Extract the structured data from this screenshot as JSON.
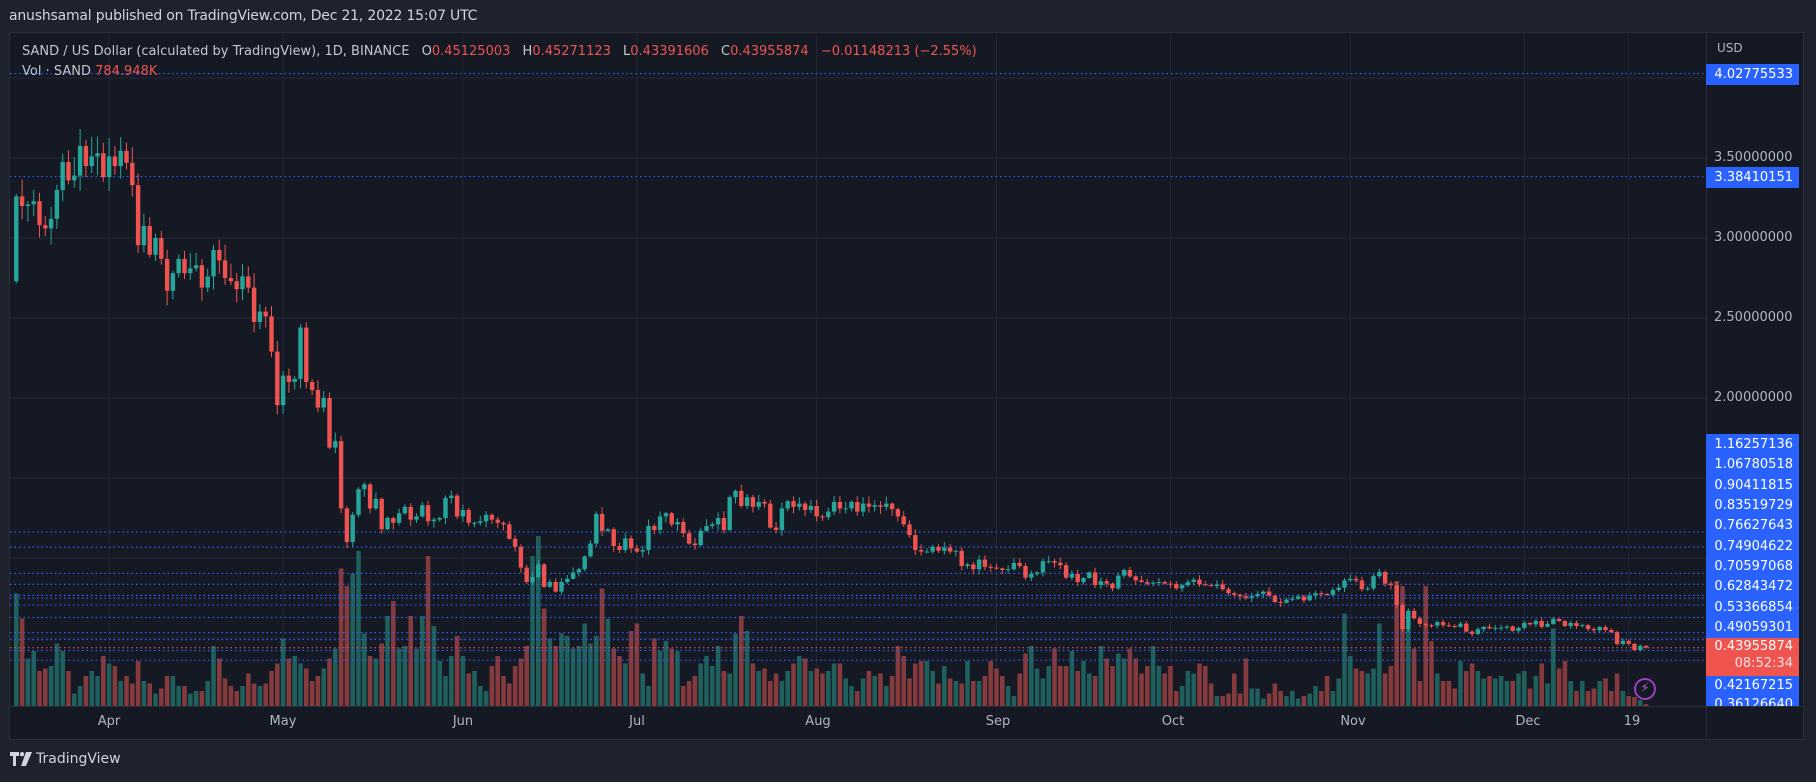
{
  "published": "anushsamal published on TradingView.com, Dec 21, 2022 15:07 UTC",
  "legend": {
    "symbol": "SAND / US Dollar (calculated by TradingView), 1D, BINANCE",
    "o_label": "O",
    "o": "0.45125003",
    "h_label": "H",
    "h": "0.45271123",
    "l_label": "L",
    "l": "0.43391606",
    "c_label": "C",
    "c": "0.43955874",
    "change": "−0.01148213 (−2.55%)",
    "vol_label": "Vol · SAND",
    "vol": "784.948K"
  },
  "price_axis": {
    "currency": "USD",
    "tag_high": "4.02775533",
    "tag_mid": "3.38410151",
    "grid_labels": [
      "3.50000000",
      "3.00000000",
      "2.50000000",
      "2.00000000"
    ],
    "stacked_labels": [
      "1.16257136",
      "1.06780518",
      "0.90411815",
      "0.83519729",
      "0.76627643",
      "0.74904622",
      "0.70597068",
      "0.62843472",
      "0.53366854",
      "0.49059301"
    ],
    "current_price": "0.43955874",
    "countdown": "08:52:34",
    "below_labels": [
      "0.42167215",
      "0.36126640"
    ]
  },
  "time_axis": [
    "Apr",
    "May",
    "Jun",
    "Jul",
    "Aug",
    "Sep",
    "Oct",
    "Nov",
    "Dec",
    "19"
  ],
  "brand": "TradingView",
  "colors": {
    "up": "#26a69a",
    "down": "#ef5350",
    "vol_up": "#1f5f5c",
    "vol_down": "#853a3e",
    "line": "#2962ff",
    "current": "#f0544f"
  },
  "chart_data": {
    "type": "candlestick",
    "title": "SAND / US Dollar, 1D, BINANCE",
    "ylabel": "USD",
    "ylim": [
      0,
      4.4
    ],
    "y_ticks": [
      0.5,
      1.0,
      1.5,
      2.0,
      2.5,
      3.0,
      3.5,
      4.0
    ],
    "start_date": "2022-03-16",
    "end_date": "2022-12-21",
    "month_ticks": [
      {
        "label": "Apr",
        "index": 16
      },
      {
        "label": "May",
        "index": 46
      },
      {
        "label": "Jun",
        "index": 77
      },
      {
        "label": "Jul",
        "index": 107
      },
      {
        "label": "Aug",
        "index": 138
      },
      {
        "label": "Sep",
        "index": 169
      },
      {
        "label": "Oct",
        "index": 199
      },
      {
        "label": "Nov",
        "index": 230
      },
      {
        "label": "Dec",
        "index": 260
      },
      {
        "label": "19",
        "index": 278
      }
    ],
    "first_open": 2.73,
    "last_open": 0.45125003,
    "close": [
      3.26,
      3.2,
      3.21,
      3.23,
      3.08,
      3.06,
      3.12,
      3.3,
      3.475,
      3.36,
      3.39,
      3.575,
      3.45,
      3.51,
      3.53,
      3.38,
      3.51,
      3.45,
      3.545,
      3.47,
      3.33,
      2.955,
      3.075,
      2.895,
      3.0,
      2.87,
      2.67,
      2.78,
      2.87,
      2.78,
      2.81,
      2.83,
      2.69,
      2.76,
      2.925,
      2.86,
      2.75,
      2.73,
      2.68,
      2.76,
      2.69,
      2.475,
      2.54,
      2.51,
      2.29,
      1.955,
      2.14,
      2.1,
      2.12,
      2.44,
      2.1,
      2.05,
      1.94,
      2.0,
      1.69,
      1.73,
      1.31,
      1.1,
      1.27,
      1.43,
      1.46,
      1.31,
      1.37,
      1.18,
      1.25,
      1.22,
      1.28,
      1.32,
      1.24,
      1.26,
      1.33,
      1.23,
      1.24,
      1.25,
      1.375,
      1.39,
      1.26,
      1.3,
      1.22,
      1.22,
      1.23,
      1.27,
      1.24,
      1.22,
      1.21,
      1.12,
      1.07,
      0.94,
      0.85,
      0.88,
      0.96,
      0.82,
      0.85,
      0.79,
      0.85,
      0.87,
      0.91,
      0.93,
      1.01,
      1.09,
      1.275,
      1.17,
      1.18,
      1.075,
      1.05,
      1.123,
      1.06,
      1.04,
      1.05,
      1.2,
      1.175,
      1.26,
      1.28,
      1.21,
      1.225,
      1.155,
      1.09,
      1.08,
      1.17,
      1.2,
      1.21,
      1.25,
      1.175,
      1.38,
      1.42,
      1.325,
      1.38,
      1.32,
      1.35,
      1.34,
      1.19,
      1.175,
      1.31,
      1.355,
      1.32,
      1.34,
      1.3,
      1.325,
      1.26,
      1.255,
      1.29,
      1.35,
      1.31,
      1.31,
      1.35,
      1.29,
      1.34,
      1.32,
      1.33,
      1.32,
      1.34,
      1.305,
      1.26,
      1.21,
      1.143,
      1.05,
      1.04,
      1.04,
      1.07,
      1.045,
      1.065,
      1.04,
      1.045,
      0.95,
      0.96,
      0.93,
      0.99,
      0.945,
      0.94,
      0.935,
      0.925,
      0.93,
      0.97,
      0.95,
      0.877,
      0.9,
      0.91,
      0.98,
      0.98,
      0.97,
      0.955,
      0.877,
      0.9,
      0.85,
      0.875,
      0.91,
      0.83,
      0.855,
      0.84,
      0.81,
      0.89,
      0.925,
      0.885,
      0.86,
      0.85,
      0.84,
      0.845,
      0.85,
      0.84,
      0.837,
      0.81,
      0.83,
      0.85,
      0.865,
      0.835,
      0.83,
      0.825,
      0.835,
      0.805,
      0.78,
      0.77,
      0.76,
      0.75,
      0.76,
      0.775,
      0.79,
      0.765,
      0.725,
      0.72,
      0.74,
      0.745,
      0.76,
      0.735,
      0.765,
      0.78,
      0.775,
      0.77,
      0.8,
      0.815,
      0.86,
      0.87,
      0.86,
      0.805,
      0.81,
      0.887,
      0.912,
      0.84,
      0.83,
      0.706,
      0.556,
      0.67,
      0.623,
      0.588,
      0.58,
      0.578,
      0.6,
      0.58,
      0.575,
      0.57,
      0.59,
      0.54,
      0.525,
      0.555,
      0.57,
      0.56,
      0.563,
      0.565,
      0.572,
      0.545,
      0.563,
      0.594,
      0.585,
      0.606,
      0.57,
      0.588,
      0.62,
      0.606,
      0.575,
      0.594,
      0.575,
      0.58,
      0.556,
      0.548,
      0.568,
      0.55,
      0.537,
      0.463,
      0.482,
      0.463,
      0.425,
      0.451,
      0.4396
    ],
    "volume_m": [
      45,
      35,
      19,
      22,
      14,
      15,
      16,
      25,
      22,
      14,
      5,
      8,
      12,
      14,
      12,
      20,
      17,
      16,
      10,
      12,
      9,
      18,
      10,
      9,
      5,
      7,
      12,
      12,
      8,
      8,
      5,
      6,
      6,
      10,
      24,
      19,
      11,
      8,
      6,
      8,
      13,
      9,
      8,
      9,
      14,
      17,
      27,
      19,
      20,
      17,
      15,
      10,
      12,
      15,
      19,
      23,
      55,
      48,
      53,
      62,
      29,
      20,
      19,
      25,
      36,
      42,
      23,
      24,
      36,
      23,
      36,
      60,
      32,
      18,
      12,
      20,
      28,
      20,
      13,
      14,
      8,
      6,
      16,
      20,
      12,
      9,
      16,
      19,
      24,
      60,
      68,
      39,
      27,
      24,
      29,
      28,
      23,
      24,
      33,
      25,
      28,
      47,
      35,
      23,
      20,
      17,
      30,
      33,
      13,
      8,
      27,
      22,
      26,
      23,
      22,
      8,
      10,
      12,
      17,
      20,
      16,
      24,
      14,
      13,
      29,
      36,
      30,
      17,
      14,
      15,
      10,
      13,
      10,
      14,
      17,
      20,
      19,
      14,
      15,
      13,
      14,
      17,
      17,
      11,
      8,
      6,
      11,
      14,
      12,
      13,
      8,
      12,
      24,
      20,
      11,
      17,
      18,
      18,
      14,
      9,
      16,
      11,
      10,
      9,
      18,
      10,
      10,
      12,
      18,
      15,
      12,
      8,
      4,
      13,
      21,
      24,
      15,
      11,
      16,
      23,
      16,
      16,
      22,
      14,
      18,
      13,
      12,
      24,
      19,
      16,
      21,
      19,
      23,
      19,
      13,
      16,
      24,
      16,
      13,
      16,
      6,
      8,
      14,
      13,
      17,
      16,
      9,
      4,
      4,
      5,
      13,
      5,
      19,
      7,
      7,
      3,
      5,
      9,
      6,
      4,
      6,
      3,
      4,
      5,
      8,
      6,
      12,
      6,
      11,
      37,
      20,
      15,
      14,
      13,
      15,
      33,
      13,
      16,
      50,
      48,
      31,
      23,
      10,
      48,
      26,
      13,
      10,
      10,
      7,
      18,
      14,
      17,
      14,
      11,
      12,
      11,
      12,
      10,
      10,
      13,
      14,
      7,
      12,
      17,
      9,
      31,
      15,
      18,
      10,
      6,
      10,
      6,
      7,
      10,
      11,
      6,
      13,
      6,
      4,
      3.6,
      2.4,
      0.785
    ],
    "levels": [
      4.02775533,
      3.38410151,
      1.16257136,
      1.06780518,
      0.90411815,
      0.83519729,
      0.76627643,
      0.74904622,
      0.70597068,
      0.62843472,
      0.53366854,
      0.49059301,
      0.42167215,
      0.3612664
    ],
    "current_level": 0.43955874
  }
}
